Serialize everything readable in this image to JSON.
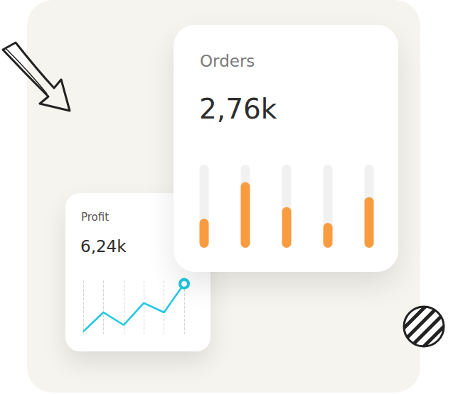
{
  "chart_data": [
    {
      "type": "bar",
      "title": "Orders",
      "subtitle": "2,76k",
      "categories": [
        null,
        null,
        null,
        null,
        null
      ],
      "values": [
        35,
        79,
        49,
        30,
        61
      ],
      "color": "#f99c3f",
      "ylim": [
        0,
        100
      ],
      "grid": false,
      "tick_labels": false
    },
    {
      "type": "line",
      "title": "Profit",
      "subtitle": "6,24k",
      "categories": [
        null,
        null,
        null,
        null,
        null,
        null
      ],
      "values": [
        3,
        32,
        13,
        46,
        32,
        75
      ],
      "color": "#1ec8e0",
      "ylim": [
        0,
        80
      ],
      "grid": true,
      "tick_labels": false
    }
  ]
}
